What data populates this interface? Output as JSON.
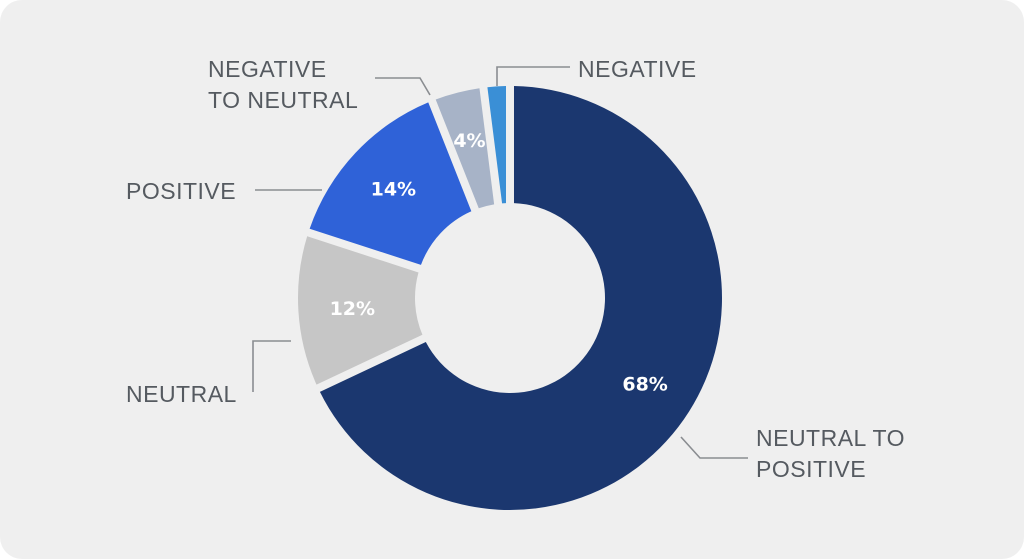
{
  "chart_data": {
    "type": "pie",
    "variant": "donut",
    "slices": [
      {
        "label": "NEUTRAL TO POSITIVE",
        "label_lines": [
          "NEUTRAL TO",
          "POSITIVE"
        ],
        "value": 68,
        "display": "68%",
        "color": "#1b376f"
      },
      {
        "label": "NEUTRAL",
        "label_lines": [
          "NEUTRAL"
        ],
        "value": 12,
        "display": "12%",
        "color": "#c6c6c6"
      },
      {
        "label": "POSITIVE",
        "label_lines": [
          "POSITIVE"
        ],
        "value": 14,
        "display": "14%",
        "color": "#2f62d8"
      },
      {
        "label": "NEGATIVE TO NEUTRAL",
        "label_lines": [
          "NEGATIVE",
          "TO NEUTRAL"
        ],
        "value": 4,
        "display": "4%",
        "color": "#a7b3c7"
      },
      {
        "label": "NEGATIVE",
        "label_lines": [
          "NEGATIVE"
        ],
        "value": 2,
        "display": "",
        "color": "#3a8fd6"
      }
    ],
    "legend": "callouts"
  },
  "colors": {
    "background": "#efefef",
    "label_text": "#555a60",
    "leader_line": "#8a8d91"
  }
}
